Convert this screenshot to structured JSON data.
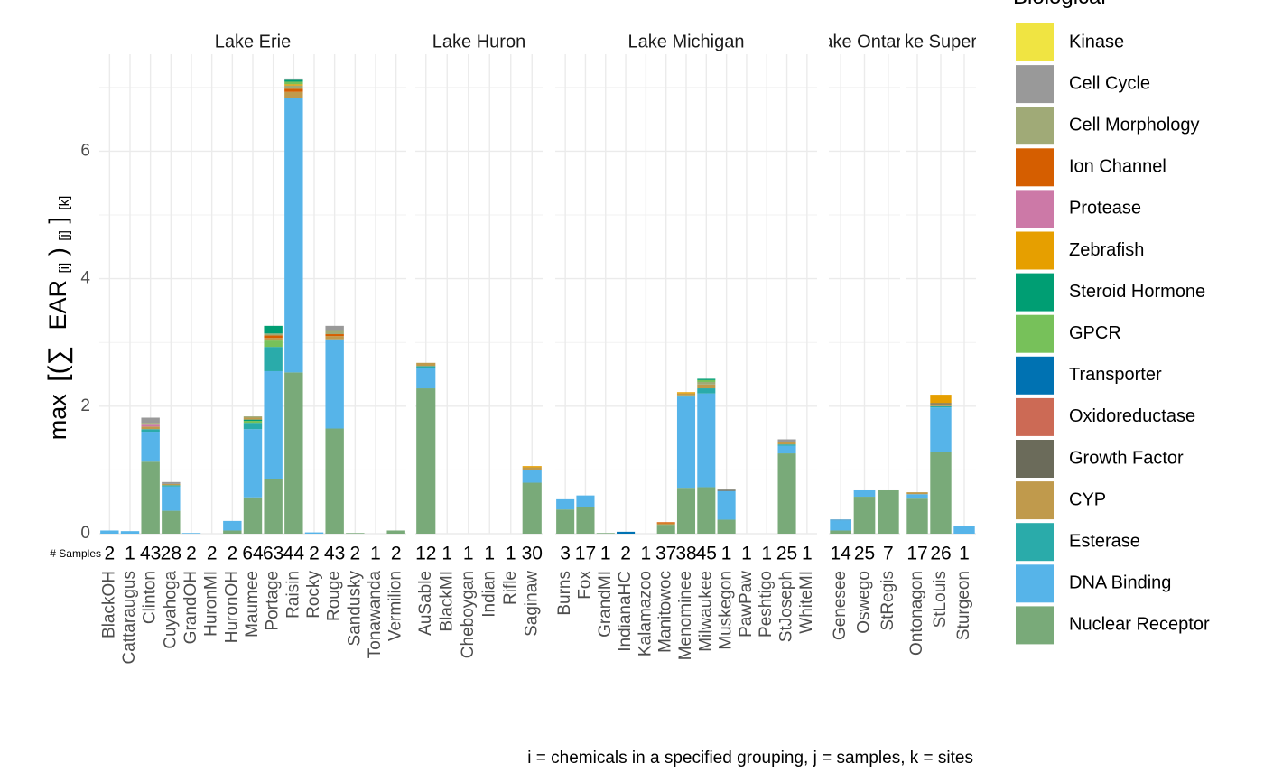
{
  "chart_data": {
    "type": "bar",
    "stacked": true,
    "y_axis": {
      "label_parts": [
        "max",
        "[(∑",
        "EAR",
        "[i]",
        ")",
        "[j]",
        "]",
        "[k]"
      ],
      "ticks": [
        0,
        2,
        4,
        6
      ],
      "ylim": [
        0,
        7.3
      ]
    },
    "caption": "i = chemicals in a specified grouping, j = samples, k = sites",
    "samples_label": "# Samples",
    "legend": {
      "title": "Biological",
      "entries": [
        {
          "name": "Kinase",
          "color": "#F0E442"
        },
        {
          "name": "Cell Cycle",
          "color": "#999999"
        },
        {
          "name": "Cell Morphology",
          "color": "#A0AA77"
        },
        {
          "name": "Ion Channel",
          "color": "#D55E00"
        },
        {
          "name": "Protease",
          "color": "#CC79A7"
        },
        {
          "name": "Zebrafish",
          "color": "#E69F00"
        },
        {
          "name": "Steroid Hormone",
          "color": "#009E73"
        },
        {
          "name": "GPCR",
          "color": "#77C15A"
        },
        {
          "name": "Transporter",
          "color": "#0072B2"
        },
        {
          "name": "Oxidoreductase",
          "color": "#CC6A55"
        },
        {
          "name": "Growth Factor",
          "color": "#6B6B5A"
        },
        {
          "name": "CYP",
          "color": "#C09A4C"
        },
        {
          "name": "Esterase",
          "color": "#2AABAA"
        },
        {
          "name": "DNA Binding",
          "color": "#56B4E9"
        },
        {
          "name": "Nuclear Receptor",
          "color": "#79AA79"
        }
      ]
    },
    "facets": [
      {
        "title": "Lake Erie",
        "sites": [
          {
            "name": "BlackOH",
            "samples": "2",
            "stack": [
              [
                "DNA Binding",
                0.05
              ]
            ]
          },
          {
            "name": "Cattaraugus",
            "samples": "1",
            "stack": [
              [
                "DNA Binding",
                0.04
              ]
            ]
          },
          {
            "name": "Clinton",
            "samples": "43",
            "stack": [
              [
                "Nuclear Receptor",
                1.13
              ],
              [
                "DNA Binding",
                0.47
              ],
              [
                "Esterase",
                0.04
              ],
              [
                "CYP",
                0.04
              ],
              [
                "Protease",
                0.03
              ],
              [
                "Cell Morphology",
                0.03
              ],
              [
                "Cell Cycle",
                0.08
              ]
            ]
          },
          {
            "name": "Cuyahoga",
            "samples": "28",
            "stack": [
              [
                "Nuclear Receptor",
                0.36
              ],
              [
                "DNA Binding",
                0.38
              ],
              [
                "Esterase",
                0.02
              ],
              [
                "CYP",
                0.02
              ],
              [
                "Cell Cycle",
                0.03
              ]
            ]
          },
          {
            "name": "GrandOH",
            "samples": "2",
            "stack": [
              [
                "DNA Binding",
                0.01
              ]
            ]
          },
          {
            "name": "HuronMI",
            "samples": "2",
            "stack": []
          },
          {
            "name": "HuronOH",
            "samples": "2",
            "stack": [
              [
                "Nuclear Receptor",
                0.05
              ],
              [
                "DNA Binding",
                0.15
              ]
            ]
          },
          {
            "name": "Maumee",
            "samples": "64",
            "stack": [
              [
                "Nuclear Receptor",
                0.57
              ],
              [
                "DNA Binding",
                1.07
              ],
              [
                "Esterase",
                0.1
              ],
              [
                "GPCR",
                0.03
              ],
              [
                "Steroid Hormone",
                0.02
              ],
              [
                "CYP",
                0.03
              ],
              [
                "Cell Morphology",
                0.02
              ]
            ]
          },
          {
            "name": "Portage",
            "samples": "63",
            "stack": [
              [
                "Nuclear Receptor",
                0.85
              ],
              [
                "DNA Binding",
                1.7
              ],
              [
                "Esterase",
                0.38
              ],
              [
                "GPCR",
                0.1
              ],
              [
                "CYP",
                0.04
              ],
              [
                "Ion Channel",
                0.04
              ],
              [
                "Cell Morphology",
                0.03
              ],
              [
                "Steroid Hormone",
                0.12
              ]
            ]
          },
          {
            "name": "Raisin",
            "samples": "44",
            "stack": [
              [
                "Nuclear Receptor",
                2.53
              ],
              [
                "DNA Binding",
                4.3
              ],
              [
                "CYP",
                0.1
              ],
              [
                "Ion Channel",
                0.05
              ],
              [
                "Cell Morphology",
                0.05
              ],
              [
                "Zebrafish",
                0.02
              ],
              [
                "GPCR",
                0.04
              ],
              [
                "Steroid Hormone",
                0.03
              ],
              [
                "Cell Cycle",
                0.02
              ]
            ]
          },
          {
            "name": "Rocky",
            "samples": "2",
            "stack": [
              [
                "DNA Binding",
                0.02
              ]
            ]
          },
          {
            "name": "Rouge",
            "samples": "43",
            "stack": [
              [
                "Nuclear Receptor",
                1.65
              ],
              [
                "DNA Binding",
                1.4
              ],
              [
                "CYP",
                0.05
              ],
              [
                "Ion Channel",
                0.03
              ],
              [
                "Cell Morphology",
                0.05
              ],
              [
                "Cell Cycle",
                0.08
              ]
            ]
          },
          {
            "name": "Sandusky",
            "samples": "2",
            "stack": [
              [
                "Nuclear Receptor",
                0.01
              ]
            ]
          },
          {
            "name": "Tonawanda",
            "samples": "1",
            "stack": []
          },
          {
            "name": "Vermilion",
            "samples": "2",
            "stack": [
              [
                "Nuclear Receptor",
                0.05
              ]
            ]
          }
        ]
      },
      {
        "title": "Lake Huron",
        "sites": [
          {
            "name": "AuSable",
            "samples": "12",
            "stack": [
              [
                "Nuclear Receptor",
                2.28
              ],
              [
                "DNA Binding",
                0.32
              ],
              [
                "Esterase",
                0.03
              ],
              [
                "CYP",
                0.05
              ]
            ]
          },
          {
            "name": "BlackMI",
            "samples": "1",
            "stack": []
          },
          {
            "name": "Cheboygan",
            "samples": "1",
            "stack": []
          },
          {
            "name": "Indian",
            "samples": "1",
            "stack": []
          },
          {
            "name": "Rifle",
            "samples": "1",
            "stack": []
          },
          {
            "name": "Saginaw",
            "samples": "30",
            "stack": [
              [
                "Nuclear Receptor",
                0.8
              ],
              [
                "DNA Binding",
                0.2
              ],
              [
                "CYP",
                0.04
              ],
              [
                "Zebrafish",
                0.02
              ]
            ]
          }
        ]
      },
      {
        "title": "Lake Michigan",
        "sites": [
          {
            "name": "Burns",
            "samples": "3",
            "stack": [
              [
                "Nuclear Receptor",
                0.38
              ],
              [
                "DNA Binding",
                0.16
              ]
            ]
          },
          {
            "name": "Fox",
            "samples": "17",
            "stack": [
              [
                "Nuclear Receptor",
                0.42
              ],
              [
                "DNA Binding",
                0.18
              ]
            ]
          },
          {
            "name": "GrandMI",
            "samples": "1",
            "stack": [
              [
                "Nuclear Receptor",
                0.01
              ]
            ]
          },
          {
            "name": "IndianaHC",
            "samples": "2",
            "stack": [
              [
                "Transporter",
                0.03
              ]
            ]
          },
          {
            "name": "Kalamazoo",
            "samples": "1",
            "stack": []
          },
          {
            "name": "Manitowoc",
            "samples": "37",
            "stack": [
              [
                "Nuclear Receptor",
                0.14
              ],
              [
                "CYP",
                0.02
              ],
              [
                "Ion Channel",
                0.02
              ]
            ]
          },
          {
            "name": "Menominee",
            "samples": "38",
            "stack": [
              [
                "Nuclear Receptor",
                0.72
              ],
              [
                "DNA Binding",
                1.43
              ],
              [
                "Esterase",
                0.02
              ],
              [
                "CYP",
                0.03
              ],
              [
                "Zebrafish",
                0.02
              ]
            ]
          },
          {
            "name": "Milwaukee",
            "samples": "45",
            "stack": [
              [
                "Nuclear Receptor",
                0.73
              ],
              [
                "DNA Binding",
                1.47
              ],
              [
                "Esterase",
                0.08
              ],
              [
                "CYP",
                0.06
              ],
              [
                "Cell Morphology",
                0.04
              ],
              [
                "GPCR",
                0.03
              ],
              [
                "Steroid Hormone",
                0.02
              ]
            ]
          },
          {
            "name": "Muskegon",
            "samples": "1",
            "stack": [
              [
                "Nuclear Receptor",
                0.22
              ],
              [
                "DNA Binding",
                0.45
              ],
              [
                "Growth Factor",
                0.02
              ]
            ]
          },
          {
            "name": "PawPaw",
            "samples": "1",
            "stack": []
          },
          {
            "name": "Peshtigo",
            "samples": "1",
            "stack": []
          },
          {
            "name": "StJoseph",
            "samples": "25",
            "stack": [
              [
                "Nuclear Receptor",
                1.26
              ],
              [
                "DNA Binding",
                0.12
              ],
              [
                "Esterase",
                0.02
              ],
              [
                "CYP",
                0.04
              ],
              [
                "Cell Cycle",
                0.04
              ]
            ]
          },
          {
            "name": "WhiteMI",
            "samples": "1",
            "stack": []
          }
        ]
      },
      {
        "title": "Lake Ontario",
        "sites": [
          {
            "name": "Genesee",
            "samples": "14",
            "stack": [
              [
                "Nuclear Receptor",
                0.05
              ],
              [
                "DNA Binding",
                0.16
              ],
              [
                "Transporter",
                0.01
              ]
            ]
          },
          {
            "name": "Oswego",
            "samples": "25",
            "stack": [
              [
                "Nuclear Receptor",
                0.58
              ],
              [
                "DNA Binding",
                0.1
              ]
            ]
          },
          {
            "name": "StRegis",
            "samples": "7",
            "stack": [
              [
                "Nuclear Receptor",
                0.68
              ]
            ]
          }
        ]
      },
      {
        "title": "Lake Superior",
        "sites": [
          {
            "name": "Ontonagon",
            "samples": "17",
            "stack": [
              [
                "Nuclear Receptor",
                0.55
              ],
              [
                "DNA Binding",
                0.07
              ],
              [
                "CYP",
                0.03
              ]
            ]
          },
          {
            "name": "StLouis",
            "samples": "26",
            "stack": [
              [
                "Nuclear Receptor",
                1.28
              ],
              [
                "DNA Binding",
                0.7
              ],
              [
                "Esterase",
                0.02
              ],
              [
                "CYP",
                0.03
              ],
              [
                "Growth Factor",
                0.02
              ],
              [
                "Zebrafish",
                0.13
              ]
            ]
          },
          {
            "name": "Sturgeon",
            "samples": "1",
            "stack": [
              [
                "DNA Binding",
                0.12
              ]
            ]
          }
        ]
      }
    ]
  }
}
